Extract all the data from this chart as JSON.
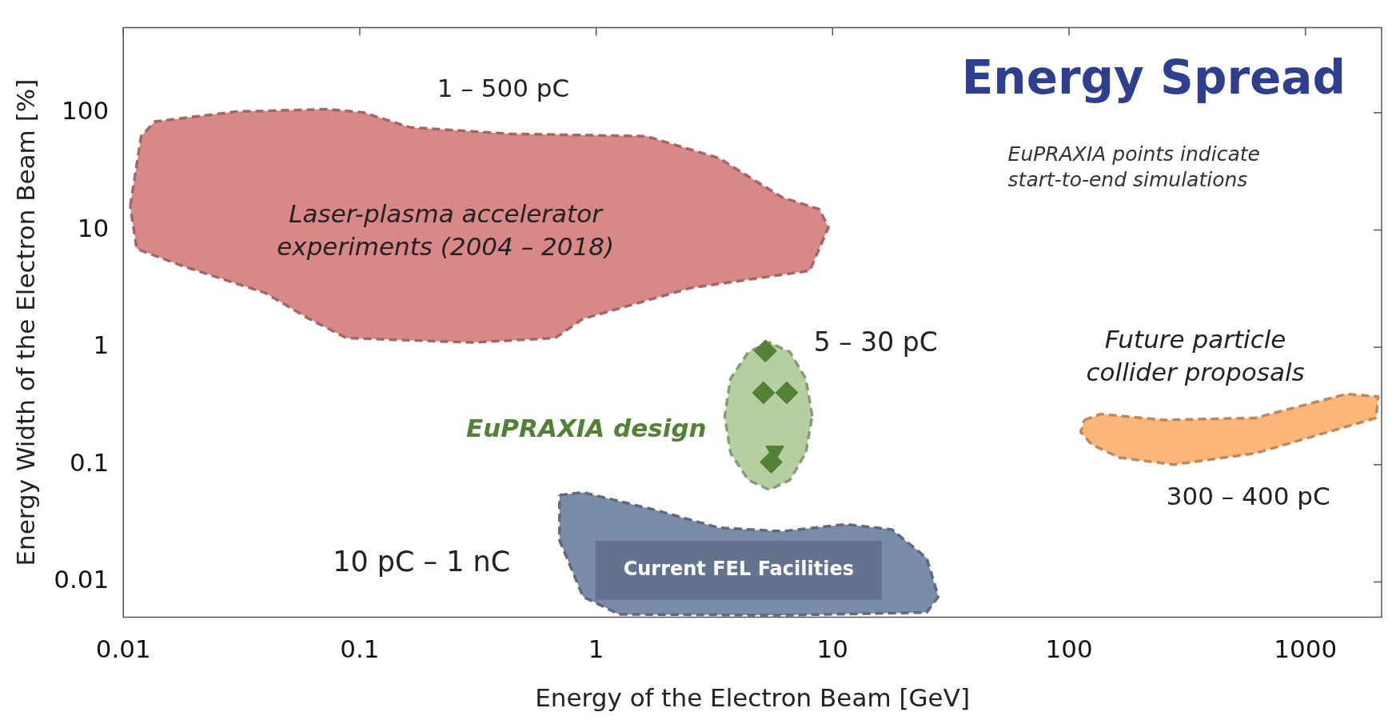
{
  "chart_data": {
    "type": "area",
    "title": "Energy Spread",
    "xlabel": "Energy of the Electron Beam [GeV]",
    "ylabel": "Energy Width of the Electron Beam [%]",
    "log": "xy",
    "xlim": [
      0.01,
      2100
    ],
    "ylim": [
      0.005,
      530
    ],
    "xticks": [
      0.01,
      0.1,
      1,
      10,
      100,
      1000
    ],
    "yticks": [
      0.01,
      0.1,
      1,
      10,
      100
    ],
    "grid": false,
    "legend": false,
    "line_style": "dashed",
    "series": [
      {
        "color": "#d98888",
        "x": [
          0.0107,
          0.0119,
          0.0136,
          0.03,
          0.073,
          0.104,
          0.163,
          0.43,
          1.63,
          3.3,
          6.1,
          8.8,
          9.6,
          8.0,
          2.5,
          0.88,
          0.67,
          0.3,
          0.088,
          0.061,
          0.04,
          0.018,
          0.0114
        ],
        "values": [
          16,
          63,
          84,
          102,
          107,
          100,
          75,
          66,
          63,
          41,
          19,
          15,
          10.5,
          4.5,
          3.2,
          1.75,
          1.2,
          1.1,
          1.2,
          1.75,
          2.9,
          4.9,
          6.9
        ]
      },
      {
        "color": "#b5cfa0",
        "x": [
          8.2,
          7.7,
          6.6,
          5.4,
          4.4,
          3.7,
          3.5,
          3.7,
          4.4,
          5.4,
          6.6,
          7.7
        ],
        "values": [
          0.26,
          0.54,
          0.91,
          1.1,
          0.91,
          0.54,
          0.26,
          0.126,
          0.074,
          0.061,
          0.074,
          0.126
        ]
      },
      {
        "color": "#7a8ca8",
        "x": [
          0.7,
          0.88,
          1.78,
          3.3,
          6.1,
          11.4,
          17.8,
          25,
          28,
          25,
          6.1,
          1.25,
          0.88,
          0.7
        ],
        "values": [
          0.055,
          0.058,
          0.041,
          0.029,
          0.027,
          0.031,
          0.028,
          0.016,
          0.0075,
          0.0055,
          0.0052,
          0.0053,
          0.0075,
          0.0227
        ]
      },
      {
        "color": "#fdb57a",
        "x": [
          116,
          136,
          253,
          614,
          1490,
          2030,
          1990,
          1250,
          614,
          277,
          163,
          125,
          112
        ],
        "values": [
          0.24,
          0.27,
          0.24,
          0.25,
          0.4,
          0.38,
          0.25,
          0.19,
          0.125,
          0.1,
          0.115,
          0.148,
          0.19
        ]
      },
      {
        "type": "scatter",
        "color": "#538135",
        "marker": "diamond",
        "x": [
          5.2,
          5.1,
          6.4,
          5.5
        ],
        "values": [
          0.93,
          0.41,
          0.41,
          0.105
        ]
      },
      {
        "type": "scatter",
        "color": "#538135",
        "marker": "triangle",
        "x": [
          5.7
        ],
        "values": [
          0.13
        ]
      }
    ],
    "annotations": [
      "1 – 500 pC",
      "Laser-plasma accelerator experiments (2004 – 2018)",
      "5 – 30 pC",
      "EuPRAXIA design",
      "Future particle collider proposals",
      "300 – 400 pC",
      "10 pC – 1 nC",
      "Current FEL Facilities",
      "EuPRAXIA points indicate start-to-end simulations"
    ]
  }
}
